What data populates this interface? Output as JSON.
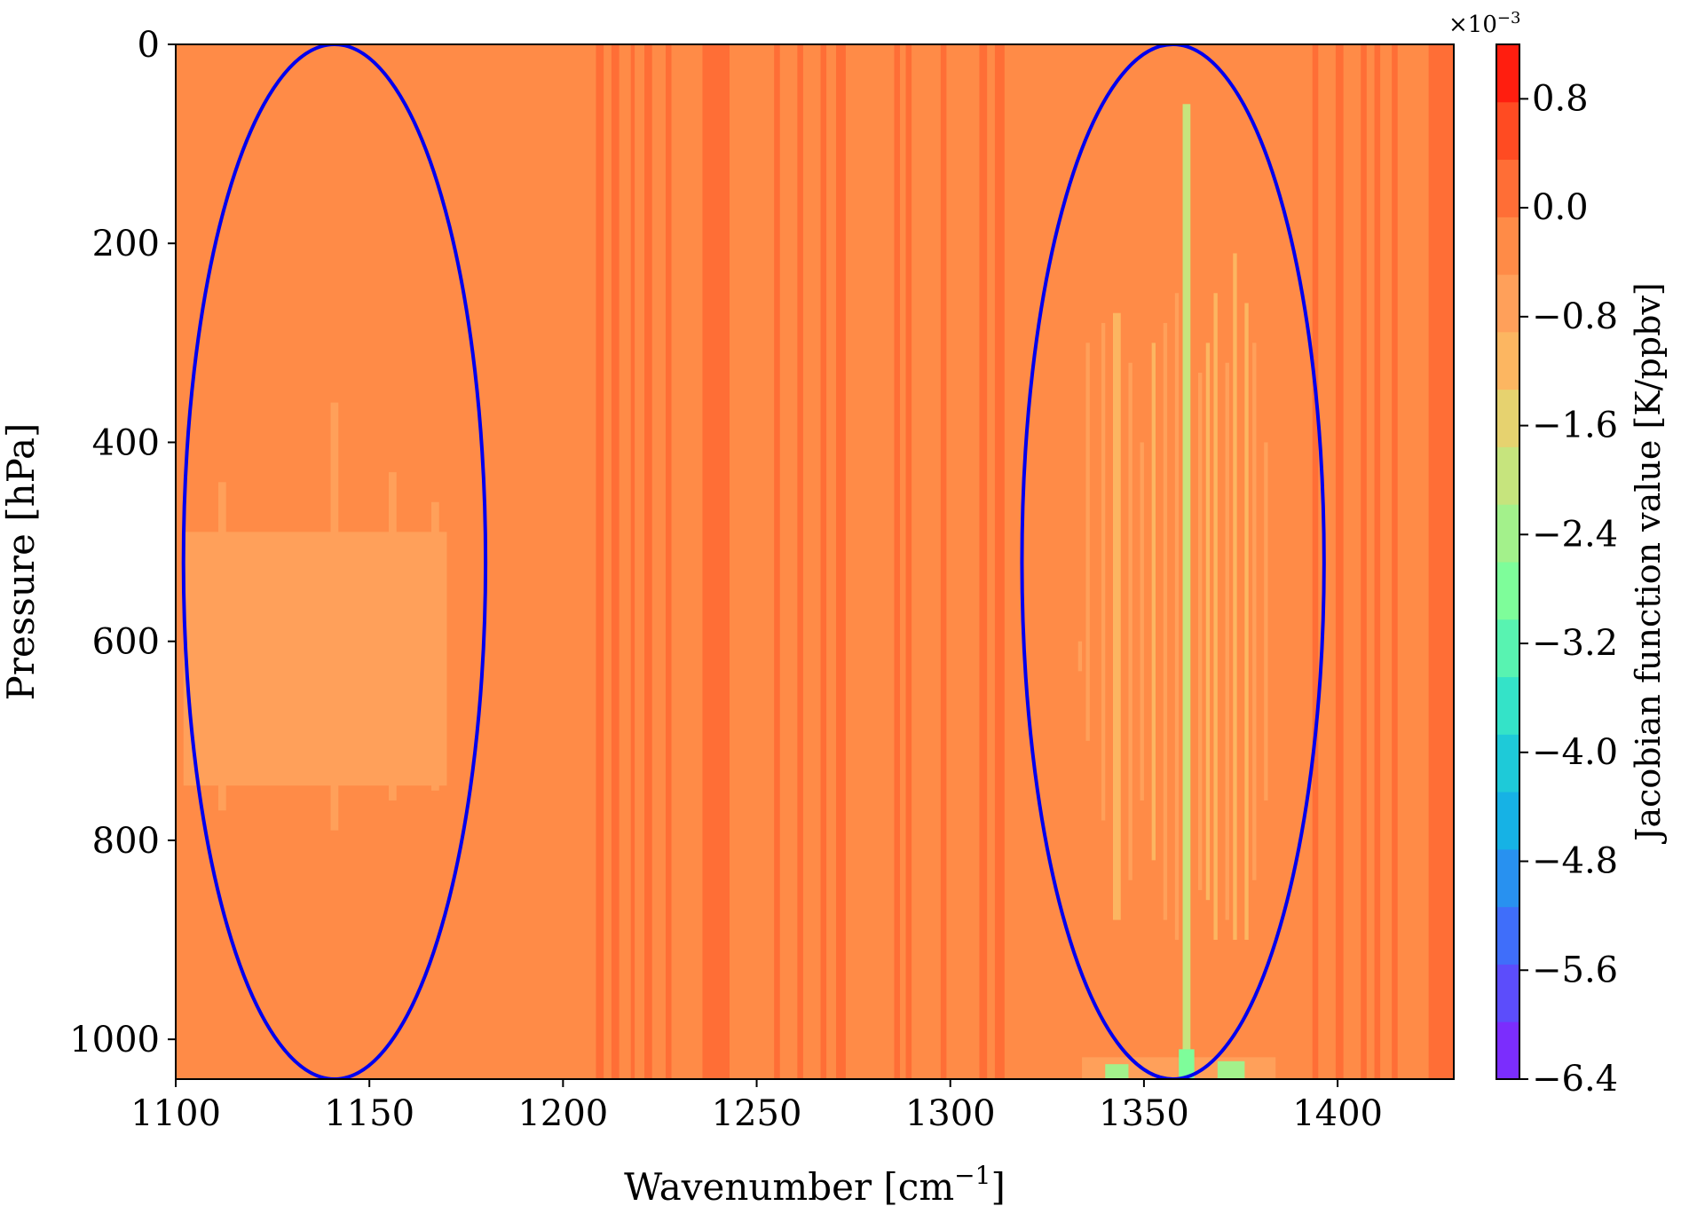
{
  "chart_data": {
    "type": "heatmap",
    "xlabel": "Wavenumber [cm",
    "xlabel_sup": "−1",
    "xlabel_close": "]",
    "ylabel": "Pressure [hPa]",
    "xlim": [
      1100,
      1430
    ],
    "ylim": [
      1040,
      0
    ],
    "x_ticks": [
      "1100",
      "1150",
      "1200",
      "1250",
      "1300",
      "1350",
      "1400"
    ],
    "x_tick_values": [
      1100,
      1150,
      1200,
      1250,
      1300,
      1350,
      1400
    ],
    "y_ticks": [
      "0",
      "200",
      "400",
      "600",
      "800",
      "1000"
    ],
    "y_tick_values": [
      0,
      200,
      400,
      600,
      800,
      1000
    ],
    "background_color": "#ff8b47",
    "colorbar": {
      "label": "Jacobian function value [K/ppbv]",
      "multiplier": "×10",
      "multiplier_exp": "−3",
      "min": -6.4,
      "max": 1.2,
      "ticks": [
        "0.8",
        "0.0",
        "−0.8",
        "−1.6",
        "−2.4",
        "−3.2",
        "−4.0",
        "−4.8",
        "−5.6",
        "−6.4"
      ],
      "tick_values": [
        0.8,
        0.0,
        -0.8,
        -1.6,
        -2.4,
        -3.2,
        -4.0,
        -4.8,
        -5.6,
        -6.4
      ],
      "colors": [
        "#7b2dfd",
        "#5c4dfb",
        "#3f6efa",
        "#2891f0",
        "#16b2e5",
        "#1ecad8",
        "#34e3c8",
        "#58f3b1",
        "#7efd9a",
        "#a3f18b",
        "#c6e47d",
        "#e6d26f",
        "#fcb661",
        "#ffa05a",
        "#ff8b47",
        "#ff6e36",
        "#ff4b22",
        "#ff1e0f"
      ]
    },
    "stripes": [
      {
        "x0": 1208.5,
        "x1": 1210.5,
        "value": 0.2
      },
      {
        "x0": 1212.5,
        "x1": 1214.5,
        "value": 0.2
      },
      {
        "x0": 1217.5,
        "x1": 1218.5,
        "value": 0.2
      },
      {
        "x0": 1221.0,
        "x1": 1223.0,
        "value": 0.2
      },
      {
        "x0": 1226.5,
        "x1": 1228.0,
        "value": 0.2
      },
      {
        "x0": 1236.0,
        "x1": 1243.0,
        "value": 0.2
      },
      {
        "x0": 1254.5,
        "x1": 1256.0,
        "value": 0.2
      },
      {
        "x0": 1260.5,
        "x1": 1262.0,
        "value": 0.2
      },
      {
        "x0": 1266.5,
        "x1": 1268.0,
        "value": 0.2
      },
      {
        "x0": 1270.5,
        "x1": 1273.0,
        "value": 0.2
      },
      {
        "x0": 1285.5,
        "x1": 1287.0,
        "value": 0.2
      },
      {
        "x0": 1288.5,
        "x1": 1290.0,
        "value": 0.2
      },
      {
        "x0": 1297.5,
        "x1": 1299.0,
        "value": 0.2
      },
      {
        "x0": 1307.5,
        "x1": 1309.5,
        "value": 0.2
      },
      {
        "x0": 1311.5,
        "x1": 1314.0,
        "value": 0.2
      },
      {
        "x0": 1393.5,
        "x1": 1395.0,
        "value": 0.2
      },
      {
        "x0": 1399.5,
        "x1": 1401.5,
        "value": 0.2
      },
      {
        "x0": 1406.0,
        "x1": 1407.5,
        "value": 0.2
      },
      {
        "x0": 1409.5,
        "x1": 1411.0,
        "value": 0.2
      },
      {
        "x0": 1414.0,
        "x1": 1415.5,
        "value": 0.2
      },
      {
        "x0": 1423.5,
        "x1": 1430.0,
        "value": 0.2
      }
    ],
    "patches": [
      {
        "x0": 1102,
        "x1": 1170,
        "y0": 490,
        "y1": 745,
        "value": -0.6
      },
      {
        "x0": 1111,
        "x1": 1113,
        "y0": 440,
        "y1": 770,
        "value": -0.6
      },
      {
        "x0": 1140,
        "x1": 1142,
        "y0": 360,
        "y1": 790,
        "value": -0.6
      },
      {
        "x0": 1155,
        "x1": 1157,
        "y0": 430,
        "y1": 760,
        "value": -0.6
      },
      {
        "x0": 1166,
        "x1": 1168,
        "y0": 460,
        "y1": 750,
        "value": -0.6
      },
      {
        "x0": 1335,
        "x1": 1336,
        "y0": 300,
        "y1": 700,
        "value": -0.6
      },
      {
        "x0": 1339,
        "x1": 1340,
        "y0": 280,
        "y1": 780,
        "value": -0.6
      },
      {
        "x0": 1342,
        "x1": 1344,
        "y0": 270,
        "y1": 880,
        "value": -1.1
      },
      {
        "x0": 1346,
        "x1": 1347,
        "y0": 320,
        "y1": 840,
        "value": -0.6
      },
      {
        "x0": 1349,
        "x1": 1350,
        "y0": 400,
        "y1": 760,
        "value": -0.6
      },
      {
        "x0": 1352,
        "x1": 1353,
        "y0": 300,
        "y1": 820,
        "value": -1.1
      },
      {
        "x0": 1355,
        "x1": 1356,
        "y0": 280,
        "y1": 880,
        "value": -0.6
      },
      {
        "x0": 1358,
        "x1": 1359,
        "y0": 250,
        "y1": 900,
        "value": -0.6
      },
      {
        "x0": 1360,
        "x1": 1362,
        "y0": 60,
        "y1": 1030,
        "value": -1.9
      },
      {
        "x0": 1364,
        "x1": 1365,
        "y0": 330,
        "y1": 850,
        "value": -0.6
      },
      {
        "x0": 1366,
        "x1": 1367,
        "y0": 300,
        "y1": 860,
        "value": -1.1
      },
      {
        "x0": 1368,
        "x1": 1369,
        "y0": 250,
        "y1": 900,
        "value": -1.1
      },
      {
        "x0": 1371,
        "x1": 1372,
        "y0": 320,
        "y1": 880,
        "value": -0.6
      },
      {
        "x0": 1373,
        "x1": 1374,
        "y0": 210,
        "y1": 900,
        "value": -1.1
      },
      {
        "x0": 1376,
        "x1": 1377,
        "y0": 260,
        "y1": 900,
        "value": -1.1
      },
      {
        "x0": 1378,
        "x1": 1379,
        "y0": 300,
        "y1": 840,
        "value": -0.6
      },
      {
        "x0": 1381,
        "x1": 1382,
        "y0": 400,
        "y1": 760,
        "value": -0.6
      },
      {
        "x0": 1333,
        "x1": 1334,
        "y0": 600,
        "y1": 630,
        "value": -0.6
      },
      {
        "x0": 1334,
        "x1": 1384,
        "y0": 1018,
        "y1": 1040,
        "value": -0.8
      },
      {
        "x0": 1340,
        "x1": 1346,
        "y0": 1025,
        "y1": 1040,
        "value": -2.3
      },
      {
        "x0": 1359,
        "x1": 1363,
        "y0": 1010,
        "y1": 1040,
        "value": -2.7
      },
      {
        "x0": 1369,
        "x1": 1376,
        "y0": 1022,
        "y1": 1040,
        "value": -2.3
      }
    ],
    "annotations": [
      {
        "shape": "ellipse",
        "cx": 1141,
        "cy": 520,
        "rx": 39,
        "ry": 520,
        "color": "#0000ee"
      },
      {
        "shape": "ellipse",
        "cx": 1357.5,
        "cy": 520,
        "rx": 39,
        "ry": 520,
        "color": "#0000ee"
      }
    ]
  }
}
